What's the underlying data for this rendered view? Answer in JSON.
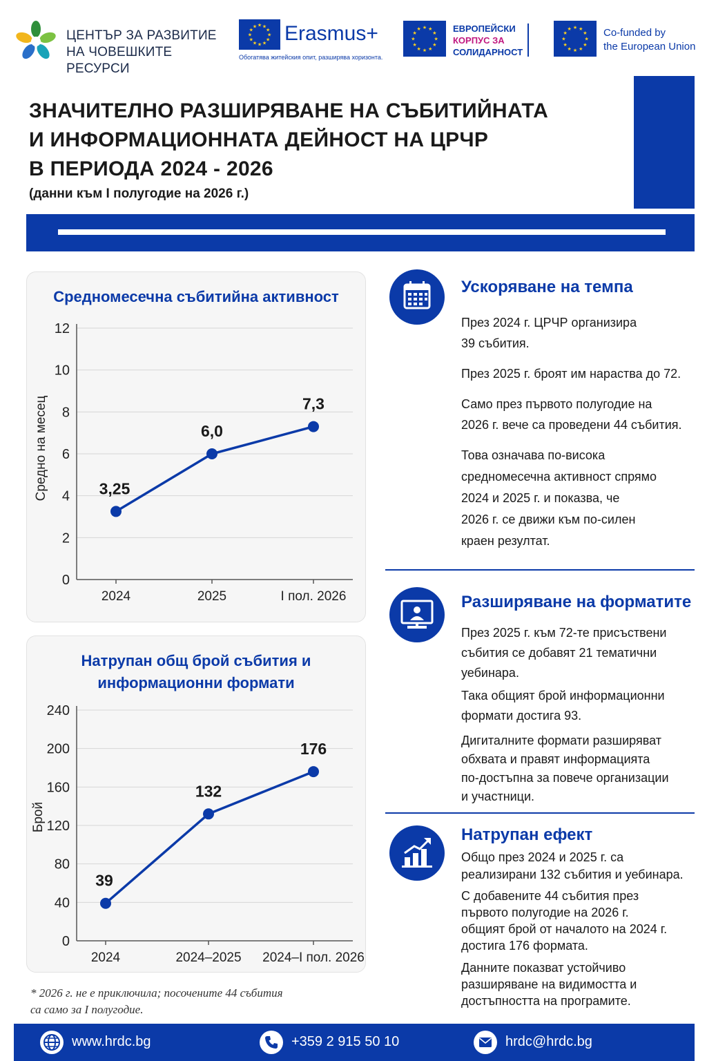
{
  "logos": {
    "hrdc_line1": "ЦЕНТЪР ЗА РАЗВИТИЕ",
    "hrdc_line2": "НА ЧОВЕШКИТЕ РЕСУРСИ",
    "erasmus_name": "Erasmus+",
    "erasmus_tagline": "Обогатява житейския опит, разширява хоризонта.",
    "esc_line1": "ЕВРОПЕЙСКИ",
    "esc_line2": "КОРПУС ЗА",
    "esc_line3": "СОЛИДАРНОСТ",
    "cofund_line1": "Co-funded by",
    "cofund_line2": "the European Union"
  },
  "header": {
    "title_line1": "ЗНАЧИТЕЛНО РАЗШИРЯВАНЕ НА СЪБИТИЙНАТА",
    "title_line2": "И ИНФОРМАЦИОННАТА ДЕЙНОСТ НА ЦРЧР",
    "title_line3": "В ПЕРИОДА 2024 - 2026",
    "subtitle": "(данни към I полугодие на 2026 г.)"
  },
  "colors": {
    "brand_blue": "#0b3aa8",
    "gold": "#ffd21f",
    "magenta": "#c0167f"
  },
  "chart_data": [
    {
      "type": "line",
      "title": "Средномесечна събитийна активност",
      "ylabel": "Средно на месец",
      "xlabel": "",
      "categories": [
        "2024",
        "2025",
        "I пол. 2026"
      ],
      "values": [
        3.25,
        6.0,
        7.3
      ],
      "data_labels": [
        "3,25",
        "6,0",
        "7,3"
      ],
      "ylim": [
        0,
        12
      ],
      "yticks": [
        0,
        2,
        4,
        6,
        8,
        10,
        12
      ],
      "grid": true
    },
    {
      "type": "line",
      "title_line1": "Натрупан общ брой събития и",
      "title_line2": "информационни формати",
      "ylabel": "Брой",
      "xlabel": "",
      "categories": [
        "2024",
        "2024–2025",
        "2024–I пол. 2026"
      ],
      "values": [
        39,
        132,
        176
      ],
      "data_labels": [
        "39",
        "132",
        "176"
      ],
      "ylim": [
        0,
        240
      ],
      "yticks": [
        0,
        40,
        80,
        120,
        160,
        200,
        240
      ],
      "grid": true
    }
  ],
  "footnote": {
    "line1": "* 2026 г. не е приключила; посочените 44 събития",
    "line2": "са само за I полугодие."
  },
  "sections": [
    {
      "icon": "calendar-icon",
      "heading": "Ускоряване на темпа",
      "paragraphs": [
        [
          "През 2024 г. ЦРЧР организира",
          "39 събития."
        ],
        [
          "През 2025 г. броят им нараства до 72."
        ],
        [
          "Само през първото полугодие на",
          "2026 г. вече са проведени 44 събития."
        ],
        [
          "Това означава по-висока",
          "средномесечна активност спрямо",
          "2024 и 2025 г. и показва, че",
          "2026 г. се движи към по-силен",
          "краен резултат."
        ]
      ]
    },
    {
      "icon": "presentation-icon",
      "heading": "Разширяване на форматите",
      "paragraphs": [
        [
          "През 2025 г. към 72-те присъствени",
          "събития се добавят 21 тематични",
          "уебинара."
        ],
        [
          "Така общият брой информационни",
          "формати достига 93."
        ],
        [
          "Дигиталните формати разширяват",
          "обхвата и правят информацията",
          "по-достъпна за повече организации",
          "и участници."
        ]
      ]
    },
    {
      "icon": "growth-chart-icon",
      "heading": "Натрупан ефект",
      "paragraphs": [
        [
          "Общо през 2024 и 2025 г. са",
          "реализирани 132 събития и уебинара."
        ],
        [
          "С добавените 44 събития през",
          "първото полугодие на 2026 г.",
          "общият брой от началото на 2024 г.",
          "достига 176 формата."
        ],
        [
          "Данните показват устойчиво",
          "разширяване на видимостта и",
          "достъпността на програмите."
        ]
      ]
    }
  ],
  "footer": {
    "website": "www.hrdc.bg",
    "phone": "+359 2 915 50 10",
    "email": "hrdc@hrdc.bg"
  }
}
